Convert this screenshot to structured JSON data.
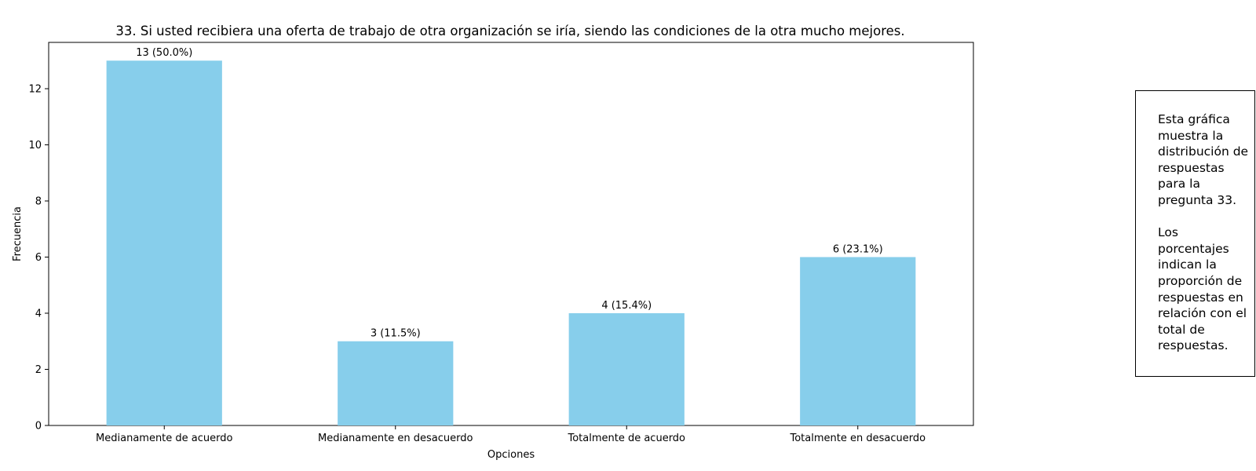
{
  "chart_data": {
    "type": "bar",
    "title": "33. Si usted recibiera una oferta de trabajo de otra organización se iría, siendo las condiciones de la otra mucho mejores.",
    "xlabel": "Opciones",
    "ylabel": "Frecuencia",
    "categories": [
      "Medianamente de acuerdo",
      "Medianamente en desacuerdo",
      "Totalmente de acuerdo",
      "Totalmente en desacuerdo"
    ],
    "values": [
      13,
      3,
      4,
      6
    ],
    "data_labels": [
      "13 (50.0%)",
      "3 (11.5%)",
      "4 (15.4%)",
      "6 (23.1%)"
    ],
    "ylim": [
      0,
      13.65
    ],
    "yticks": [
      0,
      2,
      4,
      6,
      8,
      10,
      12
    ],
    "grid": false,
    "legend": "none",
    "bar_color": "#87ceeb"
  },
  "note": {
    "text": "Esta gráfica\nmuestra la\ndistribución de\nrespuestas\npara la\npregunta 33.\n\nLos\nporcentajes\nindican la\nproporción de\nrespuestas en\nrelación con el\ntotal de\nrespuestas."
  }
}
